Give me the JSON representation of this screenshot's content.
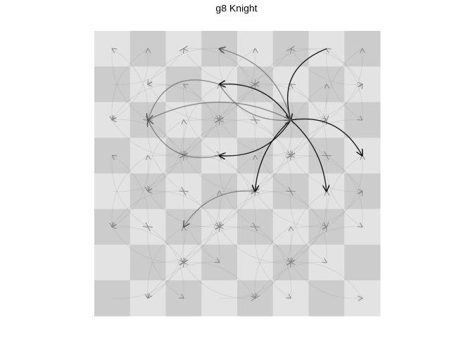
{
  "header": {
    "title": "g8 Knight"
  }
}
